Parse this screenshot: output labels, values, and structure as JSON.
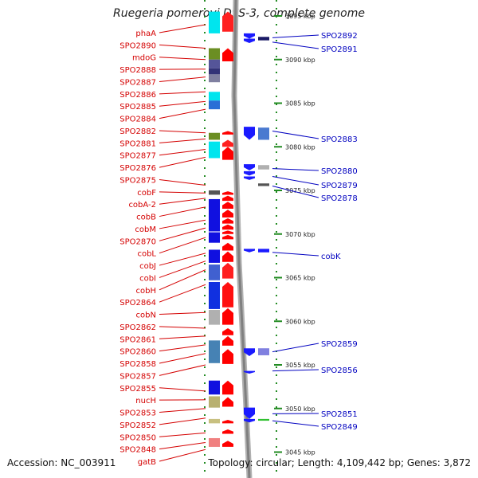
{
  "title": "Ruegeria pomeroyi DSS-3, complete genome",
  "footer": {
    "accession": "Accession: NC_003911",
    "topology": "Topology: circular; Length: 4,109,442 bp; Genes: 3,872"
  },
  "scale": {
    "unit": "kbp",
    "ticks": [
      {
        "label": "3095 kbp",
        "kbp": 3095
      },
      {
        "label": "3090 kbp",
        "kbp": 3090
      },
      {
        "label": "3085 kbp",
        "kbp": 3085
      },
      {
        "label": "3080 kbp",
        "kbp": 3080
      },
      {
        "label": "3075 kbp",
        "kbp": 3075
      },
      {
        "label": "3070 kbp",
        "kbp": 3070
      },
      {
        "label": "3065 kbp",
        "kbp": 3065
      },
      {
        "label": "3060 kbp",
        "kbp": 3060
      },
      {
        "label": "3055 kbp",
        "kbp": 3055
      },
      {
        "label": "3050 kbp",
        "kbp": 3050
      },
      {
        "label": "3045 kbp",
        "kbp": 3045
      }
    ]
  },
  "colors": {
    "left_label": "#d40000",
    "right_label": "#0000c0",
    "forward_arrow": "#ff0000",
    "reverse_arrow": "#1a1aff",
    "backbone": "#808080"
  },
  "left_genes": [
    {
      "label": "phaA",
      "kbp": 3094.0
    },
    {
      "label": "SPO2890",
      "kbp": 3091.3
    },
    {
      "label": "mdoG",
      "kbp": 3090.0
    },
    {
      "label": "SPO2888",
      "kbp": 3088.9
    },
    {
      "label": "SPO2887",
      "kbp": 3088.0
    },
    {
      "label": "SPO2886",
      "kbp": 3086.3
    },
    {
      "label": "SPO2885",
      "kbp": 3085.2
    },
    {
      "label": "SPO2884",
      "kbp": 3084.3
    },
    {
      "label": "SPO2882",
      "kbp": 3081.6
    },
    {
      "label": "SPO2881",
      "kbp": 3080.9
    },
    {
      "label": "SPO2877",
      "kbp": 3079.7
    },
    {
      "label": "SPO2876",
      "kbp": 3078.8
    },
    {
      "label": "SPO2875",
      "kbp": 3075.6
    },
    {
      "label": "cobF",
      "kbp": 3074.7
    },
    {
      "label": "cobA-2",
      "kbp": 3074.1
    },
    {
      "label": "cobB",
      "kbp": 3073.1
    },
    {
      "label": "cobM",
      "kbp": 3071.6
    },
    {
      "label": "SPO2870",
      "kbp": 3070.7
    },
    {
      "label": "cobL",
      "kbp": 3069.6
    },
    {
      "label": "cobJ",
      "kbp": 3067.8
    },
    {
      "label": "cobI",
      "kbp": 3066.9
    },
    {
      "label": "cobH",
      "kbp": 3065.9
    },
    {
      "label": "SPO2864",
      "kbp": 3064.2
    },
    {
      "label": "cobN",
      "kbp": 3061.0
    },
    {
      "label": "SPO2862",
      "kbp": 3059.2
    },
    {
      "label": "SPO2861",
      "kbp": 3058.3
    },
    {
      "label": "SPO2860",
      "kbp": 3057.3
    },
    {
      "label": "SPO2858",
      "kbp": 3056.3
    },
    {
      "label": "SPO2857",
      "kbp": 3055.0
    },
    {
      "label": "SPO2855",
      "kbp": 3052.0
    },
    {
      "label": "nucH",
      "kbp": 3051.0
    },
    {
      "label": "SPO2853",
      "kbp": 3050.0
    },
    {
      "label": "SPO2852",
      "kbp": 3048.9
    },
    {
      "label": "SPO2850",
      "kbp": 3047.2
    },
    {
      "label": "SPO2848",
      "kbp": 3046.1
    },
    {
      "label": "gatB",
      "kbp": 3045.3
    }
  ],
  "right_genes": [
    {
      "label": "SPO2892",
      "kbp": 3092.5
    },
    {
      "label": "SPO2891",
      "kbp": 3092.0
    },
    {
      "label": "SPO2883",
      "kbp": 3081.8
    },
    {
      "label": "SPO2880",
      "kbp": 3077.5
    },
    {
      "label": "SPO2879",
      "kbp": 3076.6
    },
    {
      "label": "SPO2878",
      "kbp": 3075.5
    },
    {
      "label": "cobK",
      "kbp": 3067.9
    },
    {
      "label": "SPO2859",
      "kbp": 3056.5
    },
    {
      "label": "SPO2856",
      "kbp": 3054.3
    },
    {
      "label": "SPO2851",
      "kbp": 3049.4
    },
    {
      "label": "SPO2849",
      "kbp": 3048.6
    }
  ],
  "forward_features": [
    {
      "start": 3093.2,
      "end": 3095.5,
      "color": "#ff2020"
    },
    {
      "start": 3089.8,
      "end": 3091.3,
      "color": "#ff0000"
    },
    {
      "start": 3081.4,
      "end": 3081.8,
      "color": "#ff0000"
    },
    {
      "start": 3080.0,
      "end": 3080.8,
      "color": "#ff2020"
    },
    {
      "start": 3078.5,
      "end": 3080.0,
      "color": "#ff0000"
    },
    {
      "start": 3074.5,
      "end": 3074.9,
      "color": "#ff0000"
    },
    {
      "start": 3073.8,
      "end": 3074.4,
      "color": "#ff0000"
    },
    {
      "start": 3072.9,
      "end": 3073.7,
      "color": "#ff0000"
    },
    {
      "start": 3071.9,
      "end": 3072.8,
      "color": "#ff0000"
    },
    {
      "start": 3071.2,
      "end": 3071.8,
      "color": "#ff0000"
    },
    {
      "start": 3070.5,
      "end": 3071.1,
      "color": "#ff0000"
    },
    {
      "start": 3070.0,
      "end": 3070.4,
      "color": "#ff0000"
    },
    {
      "start": 3069.4,
      "end": 3069.9,
      "color": "#ff0000"
    },
    {
      "start": 3068.1,
      "end": 3069.0,
      "color": "#ff0000"
    },
    {
      "start": 3066.8,
      "end": 3068.0,
      "color": "#ff0000"
    },
    {
      "start": 3064.9,
      "end": 3066.7,
      "color": "#ff2020"
    },
    {
      "start": 3061.6,
      "end": 3064.5,
      "color": "#ff1010"
    },
    {
      "start": 3059.6,
      "end": 3061.5,
      "color": "#ff0000"
    },
    {
      "start": 3058.4,
      "end": 3059.2,
      "color": "#ff0000"
    },
    {
      "start": 3057.2,
      "end": 3058.3,
      "color": "#ff0000"
    },
    {
      "start": 3055.1,
      "end": 3056.8,
      "color": "#ff0000"
    },
    {
      "start": 3051.6,
      "end": 3053.2,
      "color": "#ff0000"
    },
    {
      "start": 3050.2,
      "end": 3051.3,
      "color": "#ff0000"
    },
    {
      "start": 3048.3,
      "end": 3048.7,
      "color": "#ff0000"
    },
    {
      "start": 3047.1,
      "end": 3047.6,
      "color": "#ff0000"
    },
    {
      "start": 3045.6,
      "end": 3046.3,
      "color": "#ff0000"
    }
  ],
  "reverse_features": [
    {
      "start": 3092.4,
      "end": 3093.0,
      "color": "#1a1aff"
    },
    {
      "start": 3091.9,
      "end": 3092.4,
      "color": "#1a1aff"
    },
    {
      "start": 3080.8,
      "end": 3082.3,
      "color": "#1a1aff"
    },
    {
      "start": 3077.3,
      "end": 3078.0,
      "color": "#1a1aff"
    },
    {
      "start": 3076.7,
      "end": 3077.2,
      "color": "#1a1aff"
    },
    {
      "start": 3076.2,
      "end": 3076.6,
      "color": "#1a1aff"
    },
    {
      "start": 3067.9,
      "end": 3068.3,
      "color": "#1a1aff"
    },
    {
      "start": 3056.0,
      "end": 3056.9,
      "color": "#1a1aff"
    },
    {
      "start": 3054.0,
      "end": 3054.3,
      "color": "#1a1aff"
    },
    {
      "start": 3048.8,
      "end": 3050.1,
      "color": "#1a1aff"
    },
    {
      "start": 3048.4,
      "end": 3048.8,
      "color": "#1a1aff"
    }
  ],
  "inner_blocks": [
    {
      "start": 3093.0,
      "end": 3095.5,
      "color": "#00e5ee"
    },
    {
      "start": 3090.0,
      "end": 3091.3,
      "color": "#6b8e23"
    },
    {
      "start": 3089.0,
      "end": 3090.0,
      "color": "#555599"
    },
    {
      "start": 3088.3,
      "end": 3089.0,
      "color": "#333377"
    },
    {
      "start": 3087.4,
      "end": 3088.3,
      "color": "#8080a0"
    },
    {
      "start": 3085.3,
      "end": 3086.3,
      "color": "#00e5ee"
    },
    {
      "start": 3084.3,
      "end": 3085.3,
      "color": "#2a6fd6"
    },
    {
      "start": 3080.8,
      "end": 3081.6,
      "color": "#6b8e23"
    },
    {
      "start": 3078.7,
      "end": 3080.6,
      "color": "#00e5ee"
    },
    {
      "start": 3074.5,
      "end": 3075.0,
      "color": "#555555"
    },
    {
      "start": 3070.3,
      "end": 3074.0,
      "color": "#1010e0"
    },
    {
      "start": 3069.0,
      "end": 3070.2,
      "color": "#1010e0"
    },
    {
      "start": 3066.7,
      "end": 3068.2,
      "color": "#1010e0"
    },
    {
      "start": 3064.7,
      "end": 3066.5,
      "color": "#4060d0"
    },
    {
      "start": 3061.4,
      "end": 3064.5,
      "color": "#1030e0"
    },
    {
      "start": 3059.6,
      "end": 3061.3,
      "color": "#b0b0b0"
    },
    {
      "start": 3055.2,
      "end": 3057.8,
      "color": "#4682b4"
    },
    {
      "start": 3051.6,
      "end": 3053.2,
      "color": "#1010e0"
    },
    {
      "start": 3050.1,
      "end": 3051.4,
      "color": "#b8b070"
    },
    {
      "start": 3048.3,
      "end": 3048.8,
      "color": "#c8c080"
    },
    {
      "start": 3045.6,
      "end": 3046.6,
      "color": "#f08080"
    }
  ],
  "outer_blocks": [
    {
      "start": 3092.2,
      "end": 3092.6,
      "color": "#1a1a66"
    },
    {
      "start": 3080.8,
      "end": 3082.2,
      "color": "#4a7ad0"
    },
    {
      "start": 3077.4,
      "end": 3077.9,
      "color": "#b0b0b0"
    },
    {
      "start": 3075.5,
      "end": 3075.8,
      "color": "#555555"
    },
    {
      "start": 3067.9,
      "end": 3068.3,
      "color": "#1a1aff"
    },
    {
      "start": 3056.1,
      "end": 3056.9,
      "color": "#8080e0"
    },
    {
      "start": 3048.6,
      "end": 3048.8,
      "color": "#30c030"
    }
  ]
}
